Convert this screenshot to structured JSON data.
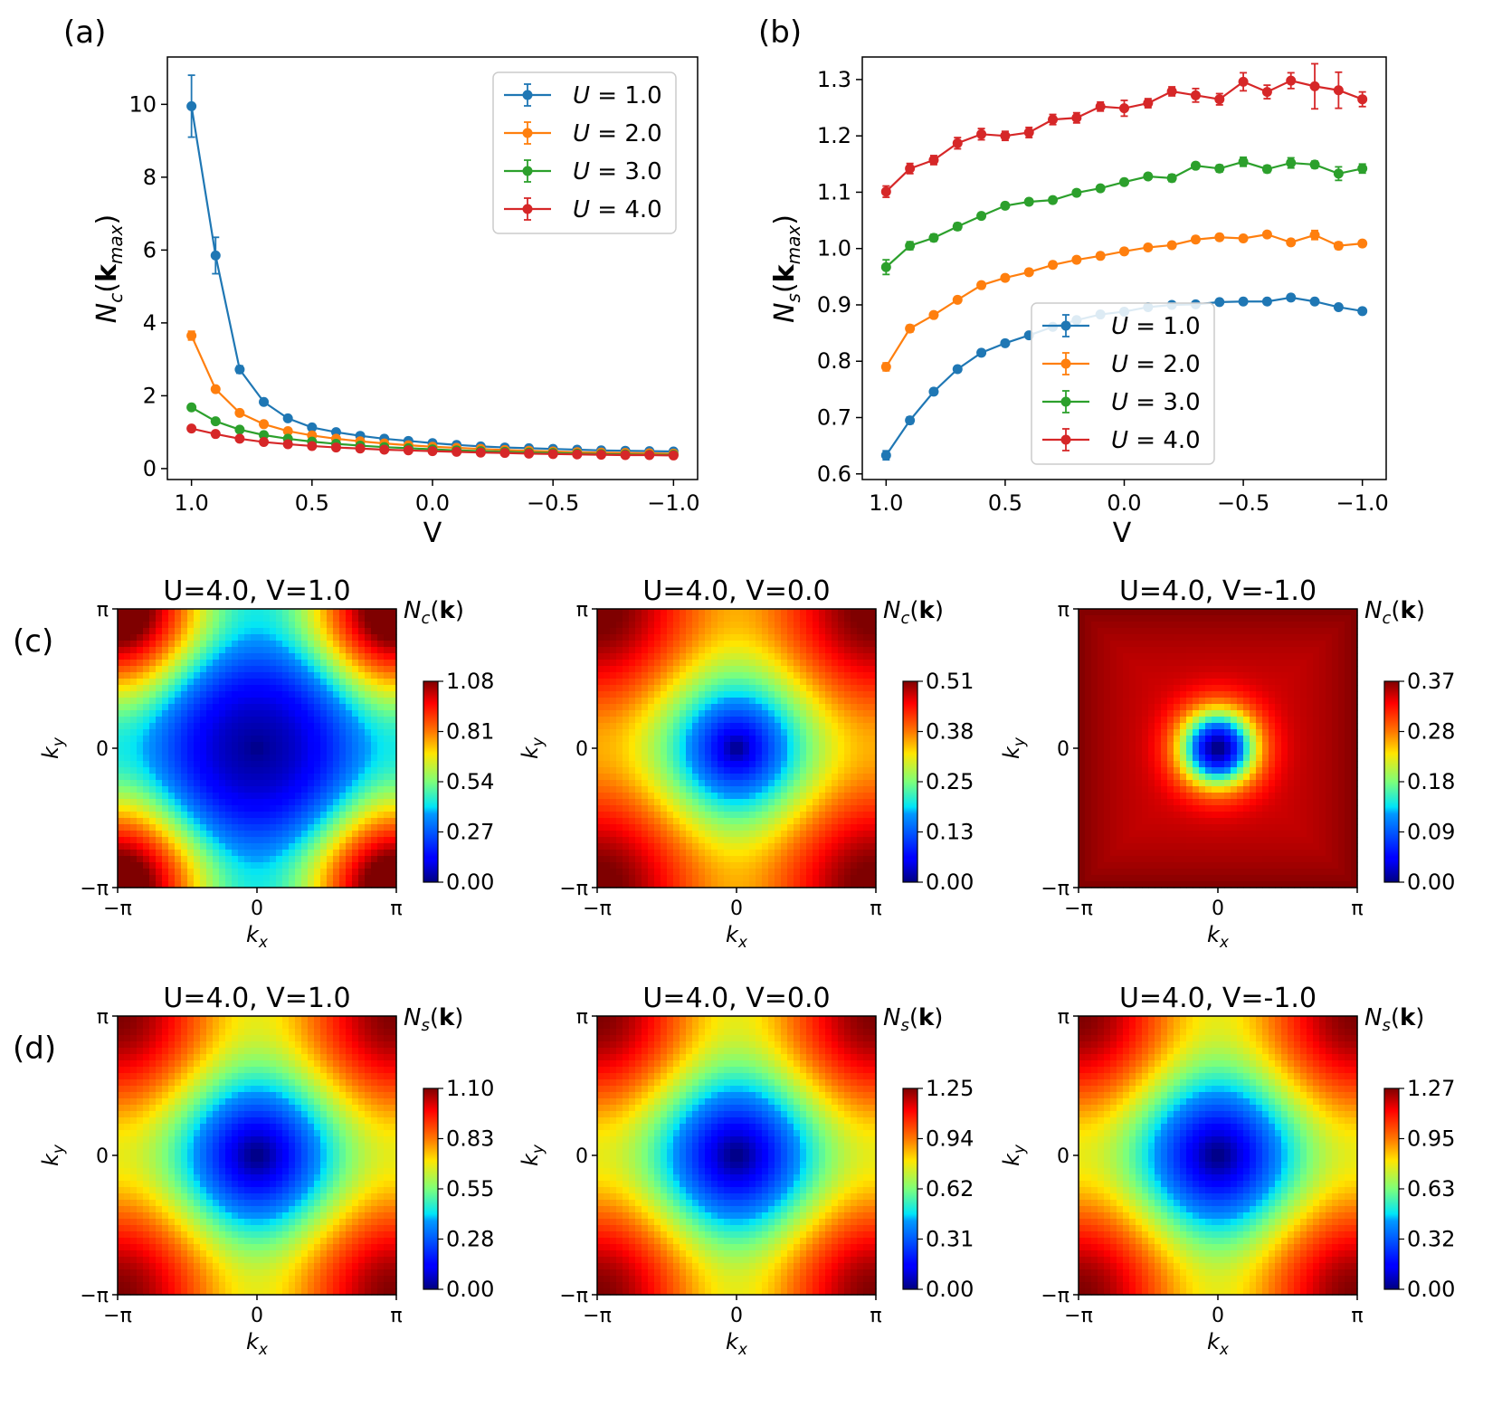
{
  "chart_data": [
    {
      "panel": "(a)",
      "type": "line",
      "x": [
        1.0,
        0.9,
        0.8,
        0.7,
        0.6,
        0.5,
        0.4,
        0.3,
        0.2,
        0.1,
        0.0,
        -0.1,
        -0.2,
        -0.3,
        -0.4,
        -0.5,
        -0.6,
        -0.7,
        -0.8,
        -0.9,
        -1.0
      ],
      "xlabel": "V",
      "ylabel": "N_c(k_max)",
      "xlim": [
        1.1,
        -1.1
      ],
      "ylim": [
        -0.3,
        11.3
      ],
      "xticks": [
        1.0,
        0.5,
        0.0,
        -0.5,
        -1.0
      ],
      "xtick_labels": [
        "1.0",
        "0.5",
        "0.0",
        "−0.5",
        "−1.0"
      ],
      "yticks": [
        0,
        2,
        4,
        6,
        8,
        10
      ],
      "ytick_labels": [
        "0",
        "2",
        "4",
        "6",
        "8",
        "10"
      ],
      "legend_position": "top-right",
      "series": [
        {
          "name": "U = 1.0",
          "label_u": "U",
          "label_eq": " = 1.0",
          "color": "#1f77b4",
          "values": [
            9.95,
            5.85,
            2.72,
            1.83,
            1.38,
            1.13,
            1.0,
            0.9,
            0.82,
            0.76,
            0.7,
            0.65,
            0.61,
            0.58,
            0.56,
            0.54,
            0.52,
            0.5,
            0.49,
            0.48,
            0.47
          ],
          "errors": [
            0.85,
            0.5,
            0.1,
            0.06,
            0.05,
            0.04,
            0.03,
            0.03,
            0.02,
            0.02,
            0.02,
            0.02,
            0.02,
            0.02,
            0.02,
            0.02,
            0.02,
            0.02,
            0.02,
            0.02,
            0.02
          ]
        },
        {
          "name": "U = 2.0",
          "label_u": "U",
          "label_eq": " = 2.0",
          "color": "#ff7f0e",
          "values": [
            3.65,
            2.18,
            1.53,
            1.22,
            1.03,
            0.91,
            0.82,
            0.75,
            0.69,
            0.64,
            0.6,
            0.57,
            0.54,
            0.51,
            0.49,
            0.47,
            0.45,
            0.44,
            0.43,
            0.42,
            0.41
          ],
          "errors": [
            0.12,
            0.06,
            0.04,
            0.03,
            0.03,
            0.02,
            0.02,
            0.02,
            0.02,
            0.02,
            0.02,
            0.02,
            0.02,
            0.02,
            0.02,
            0.02,
            0.02,
            0.02,
            0.02,
            0.02,
            0.02
          ]
        },
        {
          "name": "U = 3.0",
          "label_u": "U",
          "label_eq": " = 3.0",
          "color": "#2ca02c",
          "values": [
            1.68,
            1.3,
            1.07,
            0.92,
            0.82,
            0.74,
            0.68,
            0.63,
            0.59,
            0.56,
            0.53,
            0.5,
            0.48,
            0.46,
            0.44,
            0.43,
            0.41,
            0.4,
            0.39,
            0.38,
            0.38
          ],
          "errors": [
            0.04,
            0.03,
            0.03,
            0.02,
            0.02,
            0.02,
            0.02,
            0.02,
            0.02,
            0.02,
            0.02,
            0.02,
            0.02,
            0.02,
            0.02,
            0.02,
            0.02,
            0.02,
            0.02,
            0.02,
            0.02
          ]
        },
        {
          "name": "U = 4.0",
          "label_u": "U",
          "label_eq": " = 4.0",
          "color": "#d62728",
          "values": [
            1.1,
            0.95,
            0.82,
            0.73,
            0.67,
            0.62,
            0.58,
            0.55,
            0.52,
            0.5,
            0.48,
            0.46,
            0.44,
            0.43,
            0.41,
            0.4,
            0.39,
            0.38,
            0.37,
            0.37,
            0.36
          ],
          "errors": [
            0.03,
            0.02,
            0.02,
            0.02,
            0.02,
            0.02,
            0.02,
            0.02,
            0.02,
            0.02,
            0.02,
            0.02,
            0.02,
            0.02,
            0.02,
            0.02,
            0.02,
            0.02,
            0.02,
            0.02,
            0.02
          ]
        }
      ]
    },
    {
      "panel": "(b)",
      "type": "line",
      "x": [
        1.0,
        0.9,
        0.8,
        0.7,
        0.6,
        0.5,
        0.4,
        0.3,
        0.2,
        0.1,
        0.0,
        -0.1,
        -0.2,
        -0.3,
        -0.4,
        -0.5,
        -0.6,
        -0.7,
        -0.8,
        -0.9,
        -1.0
      ],
      "xlabel": "V",
      "ylabel": "N_s(k_max)",
      "xlim": [
        1.1,
        -1.1
      ],
      "ylim": [
        0.59,
        1.34
      ],
      "xticks": [
        1.0,
        0.5,
        0.0,
        -0.5,
        -1.0
      ],
      "xtick_labels": [
        "1.0",
        "0.5",
        "0.0",
        "−0.5",
        "−1.0"
      ],
      "yticks": [
        0.6,
        0.7,
        0.8,
        0.9,
        1.0,
        1.1,
        1.2,
        1.3
      ],
      "ytick_labels": [
        "0.6",
        "0.7",
        "0.8",
        "0.9",
        "1.0",
        "1.1",
        "1.2",
        "1.3"
      ],
      "legend_position": "lower-center",
      "series": [
        {
          "name": "U = 1.0",
          "label_u": "U",
          "label_eq": " = 1.0",
          "color": "#1f77b4",
          "values": [
            0.633,
            0.695,
            0.746,
            0.786,
            0.815,
            0.832,
            0.846,
            0.861,
            0.873,
            0.883,
            0.888,
            0.896,
            0.9,
            0.901,
            0.905,
            0.906,
            0.906,
            0.913,
            0.906,
            0.896,
            0.889
          ],
          "errors": [
            0.008,
            0.006,
            0.005,
            0.005,
            0.005,
            0.004,
            0.004,
            0.004,
            0.004,
            0.004,
            0.004,
            0.004,
            0.004,
            0.004,
            0.004,
            0.004,
            0.004,
            0.005,
            0.004,
            0.004,
            0.004
          ]
        },
        {
          "name": "U = 2.0",
          "label_u": "U",
          "label_eq": " = 2.0",
          "color": "#ff7f0e",
          "values": [
            0.79,
            0.858,
            0.882,
            0.909,
            0.935,
            0.948,
            0.958,
            0.971,
            0.98,
            0.987,
            0.995,
            1.002,
            1.006,
            1.016,
            1.02,
            1.018,
            1.025,
            1.011,
            1.024,
            1.005,
            1.009
          ],
          "errors": [
            0.007,
            0.006,
            0.005,
            0.005,
            0.005,
            0.005,
            0.005,
            0.005,
            0.005,
            0.005,
            0.005,
            0.005,
            0.005,
            0.005,
            0.005,
            0.005,
            0.005,
            0.005,
            0.008,
            0.006,
            0.005
          ]
        },
        {
          "name": "U = 3.0",
          "label_u": "U",
          "label_eq": " = 3.0",
          "color": "#2ca02c",
          "values": [
            0.967,
            1.005,
            1.019,
            1.039,
            1.058,
            1.076,
            1.083,
            1.086,
            1.099,
            1.107,
            1.118,
            1.128,
            1.125,
            1.147,
            1.142,
            1.154,
            1.141,
            1.152,
            1.149,
            1.133,
            1.142
          ],
          "errors": [
            0.013,
            0.007,
            0.006,
            0.006,
            0.005,
            0.005,
            0.005,
            0.005,
            0.005,
            0.005,
            0.005,
            0.005,
            0.006,
            0.005,
            0.006,
            0.008,
            0.006,
            0.009,
            0.006,
            0.012,
            0.008
          ]
        },
        {
          "name": "U = 4.0",
          "label_u": "U",
          "label_eq": " = 4.0",
          "color": "#d62728",
          "values": [
            1.101,
            1.142,
            1.157,
            1.187,
            1.203,
            1.2,
            1.206,
            1.229,
            1.232,
            1.252,
            1.249,
            1.258,
            1.279,
            1.272,
            1.265,
            1.296,
            1.278,
            1.298,
            1.288,
            1.281,
            1.265
          ],
          "errors": [
            0.01,
            0.009,
            0.008,
            0.01,
            0.01,
            0.008,
            0.009,
            0.009,
            0.009,
            0.008,
            0.014,
            0.008,
            0.008,
            0.012,
            0.01,
            0.016,
            0.012,
            0.014,
            0.04,
            0.032,
            0.013
          ]
        }
      ]
    },
    {
      "panel": "(c)",
      "type": "heatmap",
      "quantity": "N_c(k)",
      "colormap": "jet",
      "xlabel": "k_x",
      "ylabel": "k_y",
      "xtick_labels": [
        "−π",
        "0",
        "π"
      ],
      "ytick_labels": [
        "π",
        "0",
        "−π"
      ],
      "maps": [
        {
          "title": "U=4.0, V=1.0",
          "colorbar_ticks": [
            "1.08",
            "0.81",
            "0.54",
            "0.27",
            "0.00"
          ],
          "vmin": 0.0,
          "vmax": 1.08,
          "feature": "corner maxima with dark-blue diamond centered at (0,0)"
        },
        {
          "title": "U=4.0, V=0.0",
          "colorbar_ticks": [
            "0.51",
            "0.38",
            "0.25",
            "0.13",
            "0.00"
          ],
          "vmin": 0.0,
          "vmax": 0.51,
          "feature": "sharp minimum at (0,0) surrounded by green-yellow diamond"
        },
        {
          "title": "U=4.0, V=-1.0",
          "colorbar_ticks": [
            "0.37",
            "0.28",
            "0.18",
            "0.09",
            "0.00"
          ],
          "vmin": 0.0,
          "vmax": 0.37,
          "feature": "red plateau with narrow minimum at (0,0)"
        }
      ]
    },
    {
      "panel": "(d)",
      "type": "heatmap",
      "quantity": "N_s(k)",
      "colormap": "jet",
      "xlabel": "k_x",
      "ylabel": "k_y",
      "xtick_labels": [
        "−π",
        "0",
        "π"
      ],
      "ytick_labels": [
        "π",
        "0",
        "−π"
      ],
      "maps": [
        {
          "title": "U=4.0, V=1.0",
          "colorbar_ticks": [
            "1.10",
            "0.83",
            "0.55",
            "0.28",
            "0.00"
          ],
          "vmin": 0.0,
          "vmax": 1.1,
          "feature": "blue minimum at (0,0), dark red corners"
        },
        {
          "title": "U=4.0, V=0.0",
          "colorbar_ticks": [
            "1.25",
            "0.94",
            "0.62",
            "0.31",
            "0.00"
          ],
          "vmin": 0.0,
          "vmax": 1.25,
          "feature": "blue minimum at (0,0), dark red corners"
        },
        {
          "title": "U=4.0, V=-1.0",
          "colorbar_ticks": [
            "1.27",
            "0.95",
            "0.63",
            "0.32",
            "0.00"
          ],
          "vmin": 0.0,
          "vmax": 1.27,
          "feature": "blue minimum at (0,0), dark red corners"
        }
      ]
    }
  ]
}
